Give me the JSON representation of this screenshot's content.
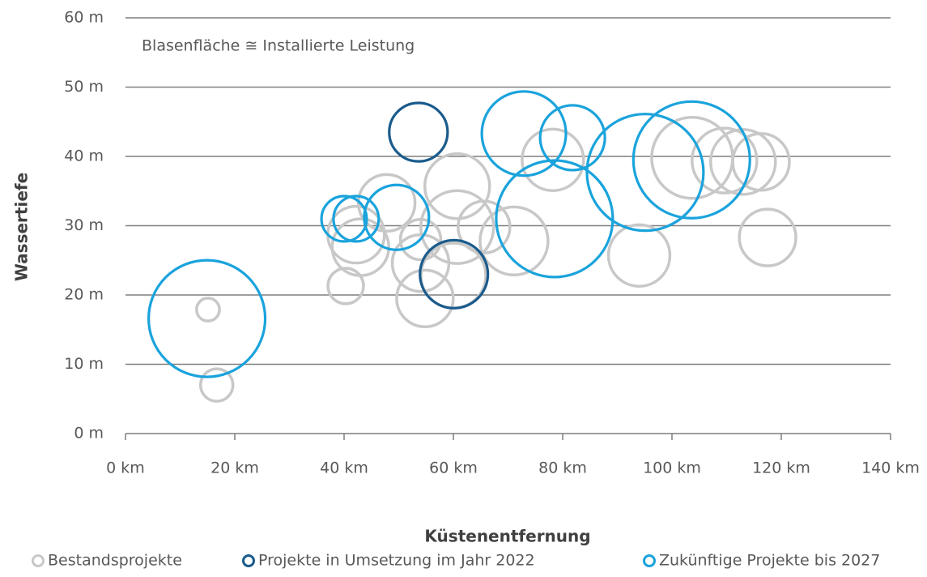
{
  "chart_data": {
    "type": "bubble",
    "annotation": "Blasenfläche ≅ Installierte Leistung",
    "xlabel": "Küstenentfernung",
    "ylabel": "Wassertiefe",
    "xlim": [
      0,
      140
    ],
    "ylim": [
      0,
      60
    ],
    "xticks": [
      {
        "value": 0,
        "label": "0 km"
      },
      {
        "value": 20,
        "label": "20 km"
      },
      {
        "value": 40,
        "label": "40 km"
      },
      {
        "value": 60,
        "label": "60 km"
      },
      {
        "value": 80,
        "label": "80 km"
      },
      {
        "value": 100,
        "label": "100 km"
      },
      {
        "value": 120,
        "label": "120 km"
      },
      {
        "value": 140,
        "label": "140 km"
      }
    ],
    "yticks": [
      {
        "value": 0,
        "label": "0 m"
      },
      {
        "value": 10,
        "label": "10 m"
      },
      {
        "value": 20,
        "label": "20 m"
      },
      {
        "value": 30,
        "label": "30 m"
      },
      {
        "value": 40,
        "label": "40 m"
      },
      {
        "value": 50,
        "label": "50 m"
      },
      {
        "value": 60,
        "label": "60 m"
      }
    ],
    "grid": true,
    "legend": "bottom",
    "series": [
      {
        "name": "Bestandsprojekte",
        "color": "#c8c8c8",
        "x": [
          15.1,
          16.7,
          40.3,
          42.2,
          43,
          47.8,
          54,
          54.8,
          54,
          60.7,
          60.7,
          60,
          65.6,
          71.1,
          78.2,
          94,
          103.7,
          109.6,
          113,
          116.3,
          117.5
        ],
        "y": [
          17.9,
          7.0,
          21.3,
          28.7,
          26.9,
          33.3,
          24.6,
          19.5,
          28,
          35.7,
          29.8,
          22.8,
          29.8,
          27.8,
          39.5,
          25.7,
          39.8,
          39.4,
          39.2,
          39.2,
          28.3
        ],
        "sizes": [
          20,
          40,
          48,
          122,
          122,
          122,
          122,
          122,
          62,
          160,
          202,
          160,
          102,
          176,
          144,
          144,
          250,
          160,
          160,
          122,
          122
        ]
      },
      {
        "name": "Projekte in Umsetzung im Jahr 2022",
        "color": "#1a5b8c",
        "x": [
          53.6,
          60.1
        ],
        "y": [
          43.5,
          23.0
        ],
        "sizes": [
          130,
          176
        ]
      },
      {
        "name": "Zukünftige Projekte bis 2027",
        "color": "#1aa3dc",
        "x": [
          14.9,
          40,
          42.2,
          49.6,
          72.9,
          81.8,
          78.5,
          95.1,
          103.6
        ],
        "y": [
          16.6,
          31,
          31,
          31.2,
          43.3,
          42.7,
          31,
          37.7,
          39.5
        ],
        "sizes": [
          518,
          78,
          78,
          160,
          270,
          160,
          518,
          518,
          518
        ]
      }
    ]
  }
}
